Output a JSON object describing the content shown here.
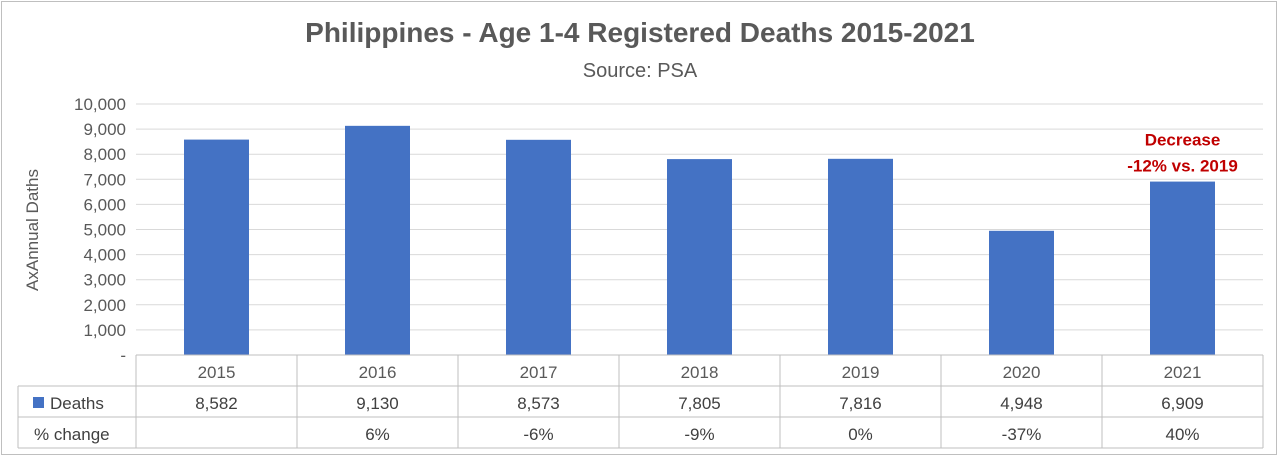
{
  "chart_data": {
    "type": "bar",
    "title": "Philippines - Age 1-4 Registered Deaths 2015-2021",
    "subtitle": "Source: PSA",
    "ylabel": "AxAnnual Daths",
    "xlabel": "",
    "categories": [
      "2015",
      "2016",
      "2017",
      "2018",
      "2019",
      "2020",
      "2021"
    ],
    "series": [
      {
        "name": "Deaths",
        "values": [
          8582,
          9130,
          8573,
          7805,
          7816,
          4948,
          6909
        ],
        "color": "#4472c4"
      }
    ],
    "ylim": [
      0,
      10000
    ],
    "yticks": [
      "-",
      "1,000",
      "2,000",
      "3,000",
      "4,000",
      "5,000",
      "6,000",
      "7,000",
      "8,000",
      "9,000",
      "10,000"
    ],
    "grid": true,
    "legend": "data-table",
    "data_table": {
      "rows": [
        {
          "label": "Deaths",
          "cells": [
            "8,582",
            "9,130",
            "8,573",
            "7,805",
            "7,816",
            "4,948",
            "6,909"
          ]
        },
        {
          "label": "% change",
          "cells": [
            "",
            "6%",
            "-6%",
            "-9%",
            "0%",
            "-37%",
            "40%"
          ]
        }
      ]
    },
    "annotation": {
      "category": "2021",
      "lines": [
        "Decrease",
        "-12% vs. 2019"
      ],
      "color": "#c00000"
    }
  }
}
